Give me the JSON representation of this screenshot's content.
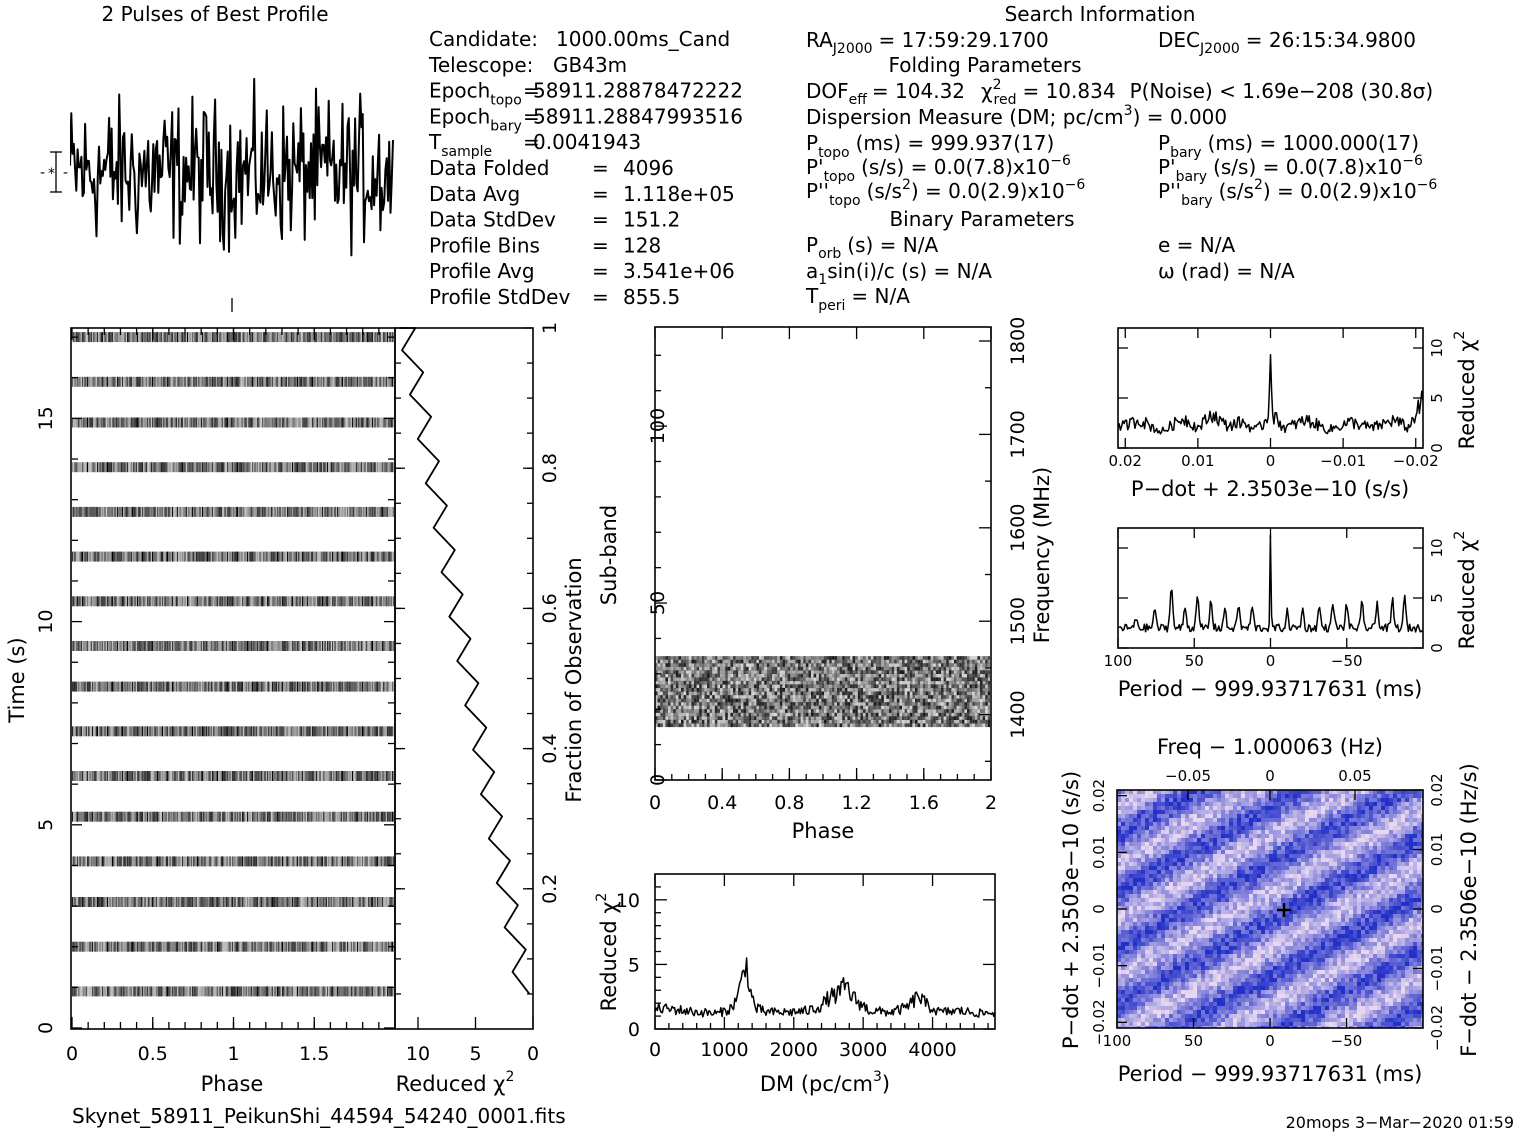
{
  "header": {
    "profile_title": "2 Pulses of Best Profile",
    "search_title": "Search Information"
  },
  "info_left": [
    {
      "key": "Candidate:",
      "sep": "",
      "val": "1000.00ms_Cand"
    },
    {
      "key": "Telescope:",
      "sep": "",
      "val": "GB43m"
    },
    {
      "key": "Epoch",
      "sub": "topo",
      "sep": "=",
      "val": "58911.28878472222"
    },
    {
      "key": "Epoch",
      "sub": "bary",
      "sep": "=",
      "val": "58911.28847993516"
    },
    {
      "key": "T",
      "sub": "sample",
      "sep": "=",
      "val": "0.0041943"
    },
    {
      "key": "Data Folded",
      "sep": "=",
      "val": "4096"
    },
    {
      "key": "Data Avg",
      "sep": "=",
      "val": "1.118e+05"
    },
    {
      "key": "Data StdDev",
      "sep": "=",
      "val": "151.2"
    },
    {
      "key": "Profile Bins",
      "sep": "=",
      "val": "128"
    },
    {
      "key": "Profile Avg",
      "sep": "=",
      "val": "3.541e+06"
    },
    {
      "key": "Profile StdDev",
      "sep": "=",
      "val": "855.5"
    }
  ],
  "search_info": {
    "ra": {
      "key": "RA",
      "sub": "J2000",
      "val": "= 17:59:29.1700"
    },
    "dec": {
      "key": "DEC",
      "sub": "J2000",
      "val": "= 26:15:34.9800"
    },
    "folding_title": "Folding Parameters",
    "dof": "DOF",
    "dof_sub": "eff",
    "dof_val": "= 104.32",
    "chi2": "χ",
    "chi2_sup": "2",
    "chi2_sub": "red",
    "chi2_val": "= 10.834",
    "pnoise": "P(Noise) < 1.69e−208   (30.8σ)",
    "dm_text": "Dispersion Measure (DM; pc/cm",
    "dm_sup": "3",
    "dm_val": ") = 0.000",
    "ptopo": {
      "key": "P",
      "sub": "topo",
      "val": "(ms) =  999.937(17)"
    },
    "pbary": {
      "key": "P",
      "sub": "bary",
      "val": "(ms) =  1000.000(17)"
    },
    "pdtopo": {
      "key": "P'",
      "sub": "topo",
      "val": "(s/s) = 0.0(7.8)x10",
      "exp": "−6"
    },
    "pdbary": {
      "key": "P'",
      "sub": "bary",
      "val": "(s/s) = 0.0(7.8)x10",
      "exp": "−6"
    },
    "pddtopo": {
      "key": "P''",
      "sub": "topo",
      "val": "(s/s",
      "sup": "2",
      "val2": ") = 0.0(2.9)x10",
      "exp": "−6"
    },
    "pddbary": {
      "key": "P''",
      "sub": "bary",
      "val": "(s/s",
      "sup": "2",
      "val2": ") = 0.0(2.9)x10",
      "exp": "−6"
    },
    "binary_title": "Binary Parameters",
    "porb": {
      "key": "P",
      "sub": "orb",
      "val": "(s) = N/A"
    },
    "ecc": "e = N/A",
    "a1": {
      "key": "a",
      "sub": "1",
      "val": "sin(i)/c (s) = N/A"
    },
    "omega": "ω (rad) = N/A",
    "tperi": {
      "key": "T",
      "sub": "peri",
      "val": "= N/A"
    }
  },
  "footer": {
    "filename": "Skynet_58911_PeikunShi_44594_54240_0001.fits",
    "stamp": "20mops  3−Mar−2020 01:59"
  },
  "chart_data": [
    {
      "type": "line",
      "title": "2 Pulses of Best Profile",
      "xlabel": "",
      "ylabel": "",
      "xlim": [
        0,
        2
      ],
      "x_ticks": [],
      "note": "noise-like folded profile, no visible pulse"
    },
    {
      "type": "heatmap",
      "xlabel": "Phase",
      "ylabel": "Time (s)",
      "xlim": [
        0,
        2
      ],
      "ylim": [
        0,
        17.2
      ],
      "x_ticks": [
        "0",
        "0.5",
        "1",
        "1.5"
      ],
      "y_ticks": [
        "0",
        "5",
        "10",
        "15"
      ],
      "pulse_rows_time_s": [
        0.9,
        2.0,
        3.1,
        4.1,
        5.2,
        6.2,
        7.3,
        8.4,
        9.4,
        10.5,
        11.6,
        12.7,
        13.8,
        14.9,
        15.9,
        17.0
      ]
    },
    {
      "type": "line",
      "xlabel": "Reduced χ",
      "xlabel_sup": "2",
      "ylabel": "Fraction of Observation",
      "xlim": [
        12,
        0
      ],
      "ylim": [
        0,
        1
      ],
      "x_ticks": [
        "10",
        "5",
        "0"
      ],
      "y_ticks": [
        "0.2",
        "0.4",
        "0.6",
        "0.8",
        "1"
      ]
    },
    {
      "type": "heatmap",
      "xlabel": "Phase",
      "ylabel": "Sub-band",
      "ylabel_right": "Frequency (MHz)",
      "xlim": [
        0,
        2
      ],
      "ylim": [
        0,
        128
      ],
      "x_ticks": [
        "0",
        "0.4",
        "0.8",
        "1.2",
        "1.6",
        "2"
      ],
      "y_ticks": [
        "0",
        "50",
        "100"
      ],
      "y_ticks_right": [
        "1400",
        "1500",
        "1600",
        "1700",
        "1800"
      ],
      "freq_range_mhz": [
        1330,
        1815
      ],
      "active_subbands": [
        15,
        35
      ]
    },
    {
      "type": "line",
      "xlabel": "DM (pc/cm",
      "xlabel_sup": "3",
      "xlabel_end": ")",
      "ylabel": "Reduced χ",
      "ylabel_sup": "2",
      "xlim": [
        0,
        4900
      ],
      "ylim": [
        0,
        12
      ],
      "x_ticks": [
        "0",
        "1000",
        "2000",
        "3000",
        "4000"
      ],
      "y_ticks": [
        "0",
        "5",
        "10"
      ],
      "x": [
        0,
        300,
        600,
        900,
        1100,
        1200,
        1260,
        1300,
        1340,
        1380,
        1450,
        1600,
        1900,
        2200,
        2400,
        2500,
        2600,
        2700,
        2750,
        2800,
        2900,
        3100,
        3400,
        3600,
        3700,
        3800,
        3900,
        4100,
        4400,
        4700,
        4900
      ],
      "y": [
        1.6,
        1.5,
        1.3,
        1.2,
        1.6,
        2.6,
        4.0,
        5.5,
        4.2,
        2.8,
        1.6,
        1.3,
        1.3,
        1.4,
        1.8,
        2.4,
        2.6,
        3.0,
        3.5,
        2.8,
        2.2,
        1.4,
        1.3,
        1.6,
        2.0,
        2.6,
        1.9,
        1.3,
        1.4,
        1.2,
        1.3
      ]
    },
    {
      "type": "line",
      "xlabel": "P−dot + 2.3503e−10 (s/s)",
      "ylabel": "Reduced χ",
      "ylabel_sup": "2",
      "xlim": [
        0.021,
        -0.021
      ],
      "ylim": [
        0,
        12
      ],
      "x_ticks": [
        "0.02",
        "0.01",
        "0",
        "−0.01",
        "−0.02"
      ],
      "y_ticks": [
        "0",
        "5",
        "10"
      ],
      "x": [
        0.021,
        0.018,
        0.015,
        0.012,
        0.01,
        0.008,
        0.006,
        0.004,
        0.002,
        0.001,
        0.0003,
        0,
        -0.0003,
        -0.002,
        -0.005,
        -0.008,
        -0.011,
        -0.014,
        -0.017,
        -0.019,
        -0.021
      ],
      "y": [
        2.0,
        2.8,
        1.6,
        3.0,
        2.0,
        3.4,
        2.2,
        2.6,
        1.8,
        2.4,
        3.2,
        11.0,
        3.2,
        2.0,
        2.8,
        1.8,
        2.6,
        2.0,
        2.8,
        2.0,
        4.8
      ]
    },
    {
      "type": "line",
      "xlabel": "Period − 999.93717631 (ms)",
      "ylabel": "Reduced χ",
      "ylabel_sup": "2",
      "xlim": [
        100,
        -100
      ],
      "ylim": [
        0,
        12
      ],
      "x_ticks": [
        "100",
        "50",
        "0",
        "−50"
      ],
      "y_ticks": [
        "0",
        "5",
        "10"
      ],
      "peaks_x": [
        88,
        76,
        65,
        56,
        48,
        39,
        30,
        21,
        12,
        0,
        -11,
        -21,
        -32,
        -41,
        -50,
        -60,
        -70,
        -80,
        -88
      ],
      "peaks_y": [
        3.0,
        4.0,
        6.5,
        4.2,
        5.5,
        4.8,
        4.0,
        4.4,
        4.2,
        11.0,
        3.6,
        3.9,
        4.2,
        4.7,
        4.5,
        4.4,
        4.6,
        4.8,
        5.0
      ]
    },
    {
      "type": "heatmap",
      "title": "Freq − 1.000063 (Hz)",
      "xlabel": "Period − 999.93717631 (ms)",
      "ylabel": "P−dot + 2.3503e−10 (s/s)",
      "ylabel_right": "F−dot − 2.3506e−10 (Hz/s)",
      "xlim": [
        100,
        -100
      ],
      "ylim": [
        0.021,
        -0.021
      ],
      "x_ticks": [
        "100",
        "50",
        "0",
        "−50"
      ],
      "y_ticks": [
        "−0.02",
        "−0.01",
        "0",
        "0.01",
        "0.02"
      ],
      "top_ticks": [
        "−0.05",
        "0",
        "0.05"
      ],
      "right_ticks": [
        "0.02",
        "0.01",
        "0",
        "−0.01",
        "−0.02"
      ],
      "best_marker": [
        0,
        0
      ],
      "color_low": "#2230c8",
      "color_high": "#e8d8ef"
    }
  ]
}
